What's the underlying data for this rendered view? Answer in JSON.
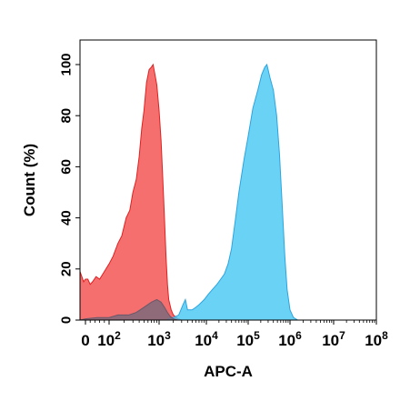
{
  "chart_data": {
    "type": "area",
    "title": "",
    "xlabel": "APC-A",
    "ylabel": "Count (%)",
    "xscale": "biexponential",
    "xlim": [
      -30,
      100000000
    ],
    "ylim": [
      0,
      105
    ],
    "grid": false,
    "legend": "none",
    "x_tick_labels": [
      {
        "value": 0,
        "base": "0",
        "exp": ""
      },
      {
        "value": 100,
        "base": "10",
        "exp": "2"
      },
      {
        "value": 1000,
        "base": "10",
        "exp": "3"
      },
      {
        "value": 10000,
        "base": "10",
        "exp": "4"
      },
      {
        "value": 100000,
        "base": "10",
        "exp": "5"
      },
      {
        "value": 1000000,
        "base": "10",
        "exp": "6"
      },
      {
        "value": 10000000,
        "base": "10",
        "exp": "7"
      },
      {
        "value": 100000000,
        "base": "10",
        "exp": "8"
      }
    ],
    "y_tick_labels": [
      "0",
      "20",
      "40",
      "60",
      "80",
      "100"
    ],
    "y_ticks": [
      0,
      20,
      40,
      60,
      80,
      100
    ],
    "series": [
      {
        "color": "#f24b4b",
        "stroke": "#e02020",
        "opacity": 0.8,
        "points": [
          [
            -30,
            19
          ],
          [
            -20,
            17
          ],
          [
            -10,
            15
          ],
          [
            0,
            16
          ],
          [
            10,
            16
          ],
          [
            20,
            14
          ],
          [
            30,
            15
          ],
          [
            45,
            17
          ],
          [
            60,
            16
          ],
          [
            80,
            19
          ],
          [
            100,
            22
          ],
          [
            120,
            25
          ],
          [
            150,
            30
          ],
          [
            180,
            33
          ],
          [
            220,
            40
          ],
          [
            260,
            43
          ],
          [
            300,
            50
          ],
          [
            350,
            55
          ],
          [
            400,
            64
          ],
          [
            450,
            75
          ],
          [
            500,
            82
          ],
          [
            560,
            93
          ],
          [
            630,
            98
          ],
          [
            700,
            99
          ],
          [
            760,
            100
          ],
          [
            830,
            96
          ],
          [
            900,
            92
          ],
          [
            1000,
            82
          ],
          [
            1100,
            70
          ],
          [
            1200,
            55
          ],
          [
            1300,
            40
          ],
          [
            1400,
            25
          ],
          [
            1500,
            14
          ],
          [
            1600,
            8
          ],
          [
            1800,
            4
          ],
          [
            2000,
            2
          ],
          [
            2500,
            0.5
          ],
          [
            3000,
            0
          ]
        ]
      },
      {
        "color": "#45c8f2",
        "stroke": "#2aa4e0",
        "opacity": 0.8,
        "points": [
          [
            1500,
            0.5
          ],
          [
            2000,
            1
          ],
          [
            2600,
            2
          ],
          [
            3200,
            6
          ],
          [
            3600,
            8
          ],
          [
            4000,
            4
          ],
          [
            5000,
            4
          ],
          [
            6000,
            5
          ],
          [
            7000,
            6
          ],
          [
            9000,
            8
          ],
          [
            11000,
            10
          ],
          [
            14000,
            12
          ],
          [
            18000,
            14
          ],
          [
            22000,
            16
          ],
          [
            27000,
            18
          ],
          [
            33000,
            22
          ],
          [
            40000,
            28
          ],
          [
            50000,
            40
          ],
          [
            60000,
            50
          ],
          [
            80000,
            63
          ],
          [
            100000,
            72
          ],
          [
            130000,
            83
          ],
          [
            170000,
            90
          ],
          [
            210000,
            96
          ],
          [
            250000,
            99
          ],
          [
            280000,
            100
          ],
          [
            330000,
            95
          ],
          [
            400000,
            90
          ],
          [
            480000,
            80
          ],
          [
            560000,
            65
          ],
          [
            650000,
            45
          ],
          [
            750000,
            25
          ],
          [
            850000,
            12
          ],
          [
            1000000,
            4
          ],
          [
            1200000,
            1
          ],
          [
            1500000,
            0
          ]
        ]
      },
      {
        "color": "#7d6a7a",
        "stroke": "#6a5868",
        "opacity": 0.85,
        "points": [
          [
            -30,
            0
          ],
          [
            0,
            0.5
          ],
          [
            50,
            1
          ],
          [
            100,
            1
          ],
          [
            150,
            2
          ],
          [
            250,
            2
          ],
          [
            350,
            3
          ],
          [
            500,
            5
          ],
          [
            700,
            7
          ],
          [
            900,
            8
          ],
          [
            1100,
            7
          ],
          [
            1300,
            5
          ],
          [
            1500,
            3
          ],
          [
            1700,
            1.5
          ],
          [
            2000,
            0.5
          ],
          [
            2500,
            0
          ]
        ]
      }
    ]
  }
}
